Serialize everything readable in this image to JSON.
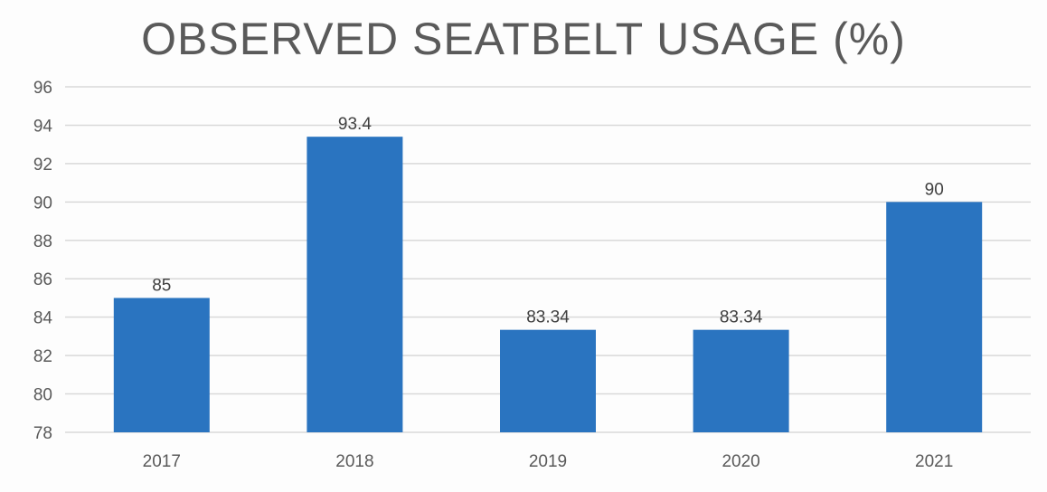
{
  "chart_data": {
    "type": "bar",
    "title": "OBSERVED SEATBELT USAGE (%)",
    "xlabel": "",
    "ylabel": "",
    "categories": [
      "2017",
      "2018",
      "2019",
      "2020",
      "2021"
    ],
    "values": [
      85,
      93.4,
      83.34,
      83.34,
      90
    ],
    "data_labels": [
      "85",
      "93.4",
      "83.34",
      "83.34",
      "90"
    ],
    "ylim": [
      78,
      96
    ],
    "yticks": [
      78,
      80,
      82,
      84,
      86,
      88,
      90,
      92,
      94,
      96
    ],
    "grid": true,
    "legend": "none",
    "bar_color": "#2a74c0",
    "grid_color": "#d9d9d9"
  }
}
